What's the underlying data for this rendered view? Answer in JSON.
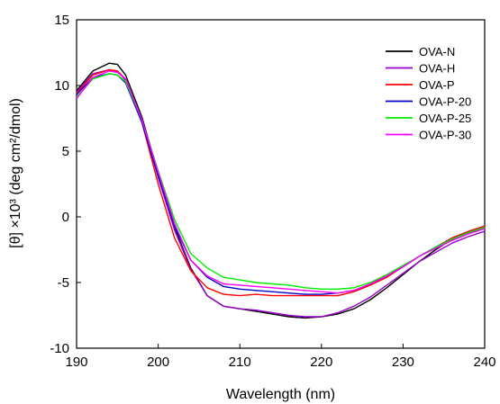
{
  "chart_data": {
    "type": "line",
    "xlabel": "Wavelength (nm)",
    "ylabel": "[θ] ×10³ (deg cm²/dmol)",
    "xlim": [
      190,
      240
    ],
    "ylim": [
      -10,
      15
    ],
    "xticks": [
      190,
      200,
      210,
      220,
      230,
      240
    ],
    "yticks": [
      -10,
      -5,
      0,
      5,
      10,
      15
    ],
    "grid": false,
    "legend_position": "top-right",
    "x": [
      190,
      192,
      194,
      195,
      196,
      198,
      200,
      202,
      204,
      206,
      208,
      210,
      212,
      214,
      216,
      218,
      220,
      222,
      224,
      226,
      228,
      230,
      232,
      234,
      236,
      238,
      240
    ],
    "series": [
      {
        "name": "OVA-N",
        "color": "#000000",
        "values": [
          9.6,
          11.1,
          11.7,
          11.6,
          10.8,
          7.6,
          3.3,
          -0.8,
          -3.9,
          -6.0,
          -6.8,
          -7.0,
          -7.2,
          -7.4,
          -7.6,
          -7.7,
          -7.6,
          -7.4,
          -7.0,
          -6.3,
          -5.4,
          -4.4,
          -3.4,
          -2.5,
          -1.7,
          -1.2,
          -0.9
        ]
      },
      {
        "name": "OVA-H",
        "color": "#9900cc",
        "values": [
          9.5,
          10.9,
          11.2,
          11.1,
          10.4,
          7.2,
          3.0,
          -1.0,
          -4.0,
          -6.0,
          -6.8,
          -7.0,
          -7.1,
          -7.3,
          -7.5,
          -7.6,
          -7.6,
          -7.3,
          -6.8,
          -6.1,
          -5.2,
          -4.3,
          -3.4,
          -2.7,
          -2.0,
          -1.5,
          -1.1
        ]
      },
      {
        "name": "OVA-P",
        "color": "#ff0000",
        "values": [
          9.4,
          10.8,
          11.2,
          11.1,
          10.5,
          7.2,
          2.5,
          -1.6,
          -4.1,
          -5.4,
          -5.9,
          -6.0,
          -5.9,
          -6.0,
          -6.0,
          -6.0,
          -6.0,
          -6.0,
          -5.7,
          -5.2,
          -4.6,
          -3.8,
          -3.0,
          -2.3,
          -1.6,
          -1.1,
          -0.7
        ]
      },
      {
        "name": "OVA-P-20",
        "color": "#0000cc",
        "values": [
          9.3,
          10.6,
          10.9,
          10.8,
          10.2,
          7.2,
          3.1,
          -0.7,
          -3.3,
          -4.6,
          -5.3,
          -5.5,
          -5.6,
          -5.7,
          -5.8,
          -5.9,
          -5.9,
          -5.8,
          -5.6,
          -5.1,
          -4.5,
          -3.8,
          -3.0,
          -2.3,
          -1.7,
          -1.2,
          -0.8
        ]
      },
      {
        "name": "OVA-P-25",
        "color": "#00ee00",
        "values": [
          9.1,
          10.5,
          10.9,
          10.8,
          10.3,
          7.4,
          3.5,
          -0.2,
          -2.8,
          -3.9,
          -4.6,
          -4.8,
          -5.0,
          -5.1,
          -5.2,
          -5.4,
          -5.5,
          -5.5,
          -5.4,
          -5.0,
          -4.4,
          -3.7,
          -3.0,
          -2.3,
          -1.7,
          -1.2,
          -0.8
        ]
      },
      {
        "name": "OVA-P-30",
        "color": "#ff00ff",
        "values": [
          9.0,
          10.6,
          11.1,
          11.0,
          10.5,
          7.4,
          3.4,
          -0.5,
          -3.3,
          -4.5,
          -5.1,
          -5.2,
          -5.3,
          -5.4,
          -5.5,
          -5.6,
          -5.7,
          -5.8,
          -5.6,
          -5.1,
          -4.5,
          -3.8,
          -3.0,
          -2.4,
          -1.8,
          -1.3,
          -0.9
        ]
      }
    ]
  }
}
